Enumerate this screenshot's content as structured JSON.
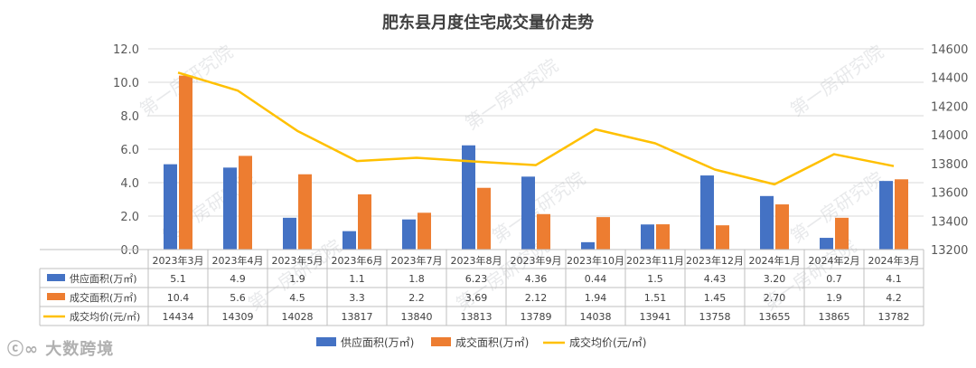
{
  "chart_data": {
    "type": "bar",
    "title": "肥东县月度住宅成交量价走势",
    "categories": [
      "2023年3月",
      "2023年4月",
      "2023年5月",
      "2023年6月",
      "2023年7月",
      "2023年8月",
      "2023年9月",
      "2023年10月",
      "2023年11月",
      "2023年12月",
      "2024年1月",
      "2024年2月",
      "2024年3月"
    ],
    "series": [
      {
        "name": "供应面积(万㎡)",
        "type": "bar",
        "axis": "left",
        "color": "#4472C4",
        "values": [
          5.1,
          4.9,
          1.9,
          1.1,
          1.8,
          6.23,
          4.36,
          0.44,
          1.5,
          4.43,
          3.2,
          0.7,
          4.1
        ],
        "labels": [
          "5.1",
          "4.9",
          "1.9",
          "1.1",
          "1.8",
          "6.23",
          "4.36",
          "0.44",
          "1.5",
          "4.43",
          "3.20",
          "0.7",
          "4.1"
        ]
      },
      {
        "name": "成交面积(万㎡)",
        "type": "bar",
        "axis": "left",
        "color": "#ED7D31",
        "values": [
          10.4,
          5.6,
          4.5,
          3.3,
          2.2,
          3.69,
          2.12,
          1.94,
          1.51,
          1.45,
          2.7,
          1.9,
          4.2
        ],
        "labels": [
          "10.4",
          "5.6",
          "4.5",
          "3.3",
          "2.2",
          "3.69",
          "2.12",
          "1.94",
          "1.51",
          "1.45",
          "2.70",
          "1.9",
          "4.2"
        ]
      },
      {
        "name": "成交均价(元/㎡)",
        "type": "line",
        "axis": "right",
        "color": "#FFC000",
        "values": [
          14434,
          14309,
          14028,
          13817,
          13840,
          13813,
          13789,
          14038,
          13941,
          13758,
          13655,
          13865,
          13782
        ],
        "labels": [
          "14434",
          "14309",
          "14028",
          "13817",
          "13840",
          "13813",
          "13789",
          "14038",
          "13941",
          "13758",
          "13655",
          "13865",
          "13782"
        ]
      }
    ],
    "y_left": {
      "ylim": [
        0,
        12
      ],
      "ticks": [
        "0.0",
        "2.0",
        "4.0",
        "6.0",
        "8.0",
        "10.0",
        "12.0"
      ]
    },
    "y_right": {
      "ylim": [
        13200,
        14600
      ],
      "ticks": [
        "13200",
        "13400",
        "13600",
        "13800",
        "14000",
        "14200",
        "14400",
        "14600"
      ]
    },
    "grid": true,
    "legend_position": "bottom",
    "data_table": true,
    "watermark": "第一房研究院"
  },
  "brand": {
    "logo_text": "大数跨境"
  }
}
